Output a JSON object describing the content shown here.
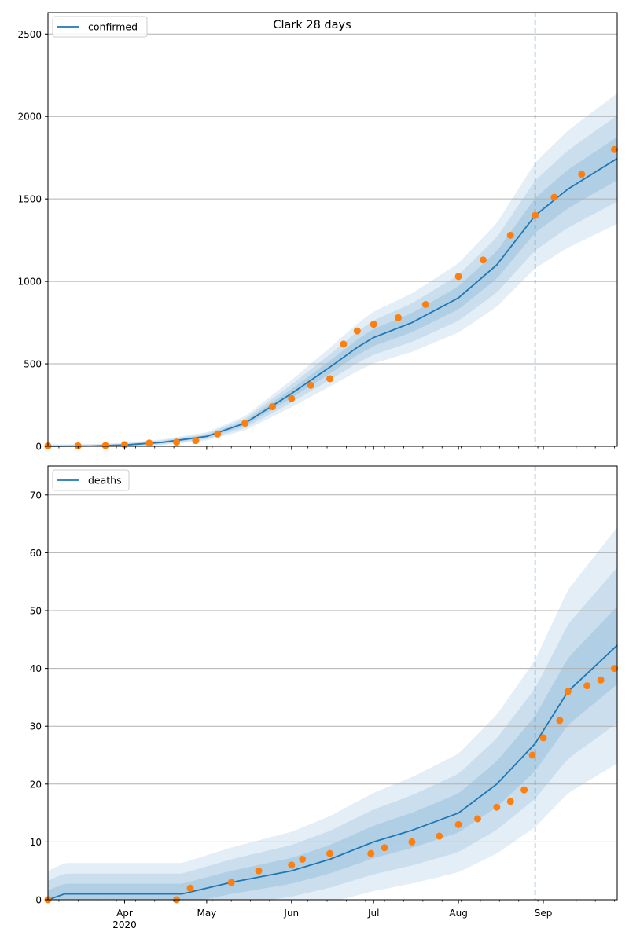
{
  "figure": {
    "title": "Clark 28 days"
  },
  "chart_data": [
    {
      "type": "line",
      "title": "Clark 28 days",
      "xlabel": "",
      "ylabel": "",
      "x_range": [
        "2020-03-04",
        "2020-09-28"
      ],
      "ylim": [
        0,
        2630
      ],
      "y_ticks": [
        0,
        500,
        1000,
        1500,
        2000,
        2500
      ],
      "x_tick_labels": [
        "Apr\n2020",
        "May",
        "Jun",
        "Jul",
        "Aug",
        "Sep"
      ],
      "grid": "horizontal",
      "legend": {
        "placement": "top-left",
        "entries": [
          "confirmed"
        ]
      },
      "forecast_start": "2020-08-29",
      "series": [
        {
          "name": "confirmed",
          "kind": "model-line",
          "color": "#1f77b4",
          "x": [
            "2020-03-04",
            "2020-03-20",
            "2020-04-01",
            "2020-04-15",
            "2020-05-01",
            "2020-05-15",
            "2020-06-01",
            "2020-06-15",
            "2020-06-25",
            "2020-07-01",
            "2020-07-15",
            "2020-08-01",
            "2020-08-15",
            "2020-08-29",
            "2020-09-10",
            "2020-09-28"
          ],
          "y": [
            0,
            2,
            8,
            25,
            60,
            140,
            320,
            480,
            600,
            660,
            750,
            900,
            1100,
            1400,
            1560,
            1745
          ]
        },
        {
          "name": "observed",
          "kind": "points",
          "color": "#ff7f0e",
          "x": [
            "2020-03-04",
            "2020-03-15",
            "2020-03-25",
            "2020-04-01",
            "2020-04-10",
            "2020-04-20",
            "2020-04-27",
            "2020-05-05",
            "2020-05-15",
            "2020-05-25",
            "2020-06-01",
            "2020-06-08",
            "2020-06-15",
            "2020-06-20",
            "2020-06-25",
            "2020-07-01",
            "2020-07-10",
            "2020-07-20",
            "2020-08-01",
            "2020-08-10",
            "2020-08-20",
            "2020-08-29",
            "2020-09-05",
            "2020-09-15",
            "2020-09-27"
          ],
          "y": [
            2,
            3,
            5,
            10,
            20,
            25,
            35,
            75,
            140,
            240,
            290,
            370,
            410,
            620,
            700,
            740,
            780,
            860,
            1030,
            1130,
            1280,
            1400,
            1510,
            1650,
            1800
          ]
        }
      ]
    },
    {
      "type": "line",
      "title": "",
      "xlabel": "",
      "ylabel": "",
      "x_range": [
        "2020-03-04",
        "2020-09-28"
      ],
      "ylim": [
        0,
        75
      ],
      "y_ticks": [
        0,
        10,
        20,
        30,
        40,
        50,
        60,
        70
      ],
      "x_tick_labels": [
        "Apr\n2020",
        "May",
        "Jun",
        "Jul",
        "Aug",
        "Sep"
      ],
      "grid": "horizontal",
      "legend": {
        "placement": "top-left",
        "entries": [
          "deaths"
        ]
      },
      "forecast_start": "2020-08-29",
      "series": [
        {
          "name": "deaths",
          "kind": "model-line",
          "color": "#1f77b4",
          "x": [
            "2020-03-04",
            "2020-03-10",
            "2020-04-22",
            "2020-05-10",
            "2020-06-01",
            "2020-06-15",
            "2020-07-01",
            "2020-07-15",
            "2020-08-01",
            "2020-08-15",
            "2020-08-29",
            "2020-09-10",
            "2020-09-28"
          ],
          "y": [
            0,
            1,
            1,
            3,
            5,
            7,
            10,
            12,
            15,
            20,
            27,
            36,
            44
          ]
        },
        {
          "name": "observed",
          "kind": "points",
          "color": "#ff7f0e",
          "x": [
            "2020-03-04",
            "2020-04-20",
            "2020-04-25",
            "2020-05-10",
            "2020-05-20",
            "2020-06-01",
            "2020-06-05",
            "2020-06-15",
            "2020-06-30",
            "2020-07-05",
            "2020-07-15",
            "2020-07-25",
            "2020-08-01",
            "2020-08-08",
            "2020-08-15",
            "2020-08-20",
            "2020-08-25",
            "2020-08-28",
            "2020-09-01",
            "2020-09-07",
            "2020-09-10",
            "2020-09-17",
            "2020-09-22",
            "2020-09-27"
          ],
          "y": [
            0,
            0,
            2,
            3,
            5,
            6,
            7,
            8,
            8,
            9,
            10,
            11,
            13,
            14,
            16,
            17,
            19,
            25,
            28,
            31,
            36,
            37,
            38,
            40
          ]
        }
      ]
    }
  ]
}
